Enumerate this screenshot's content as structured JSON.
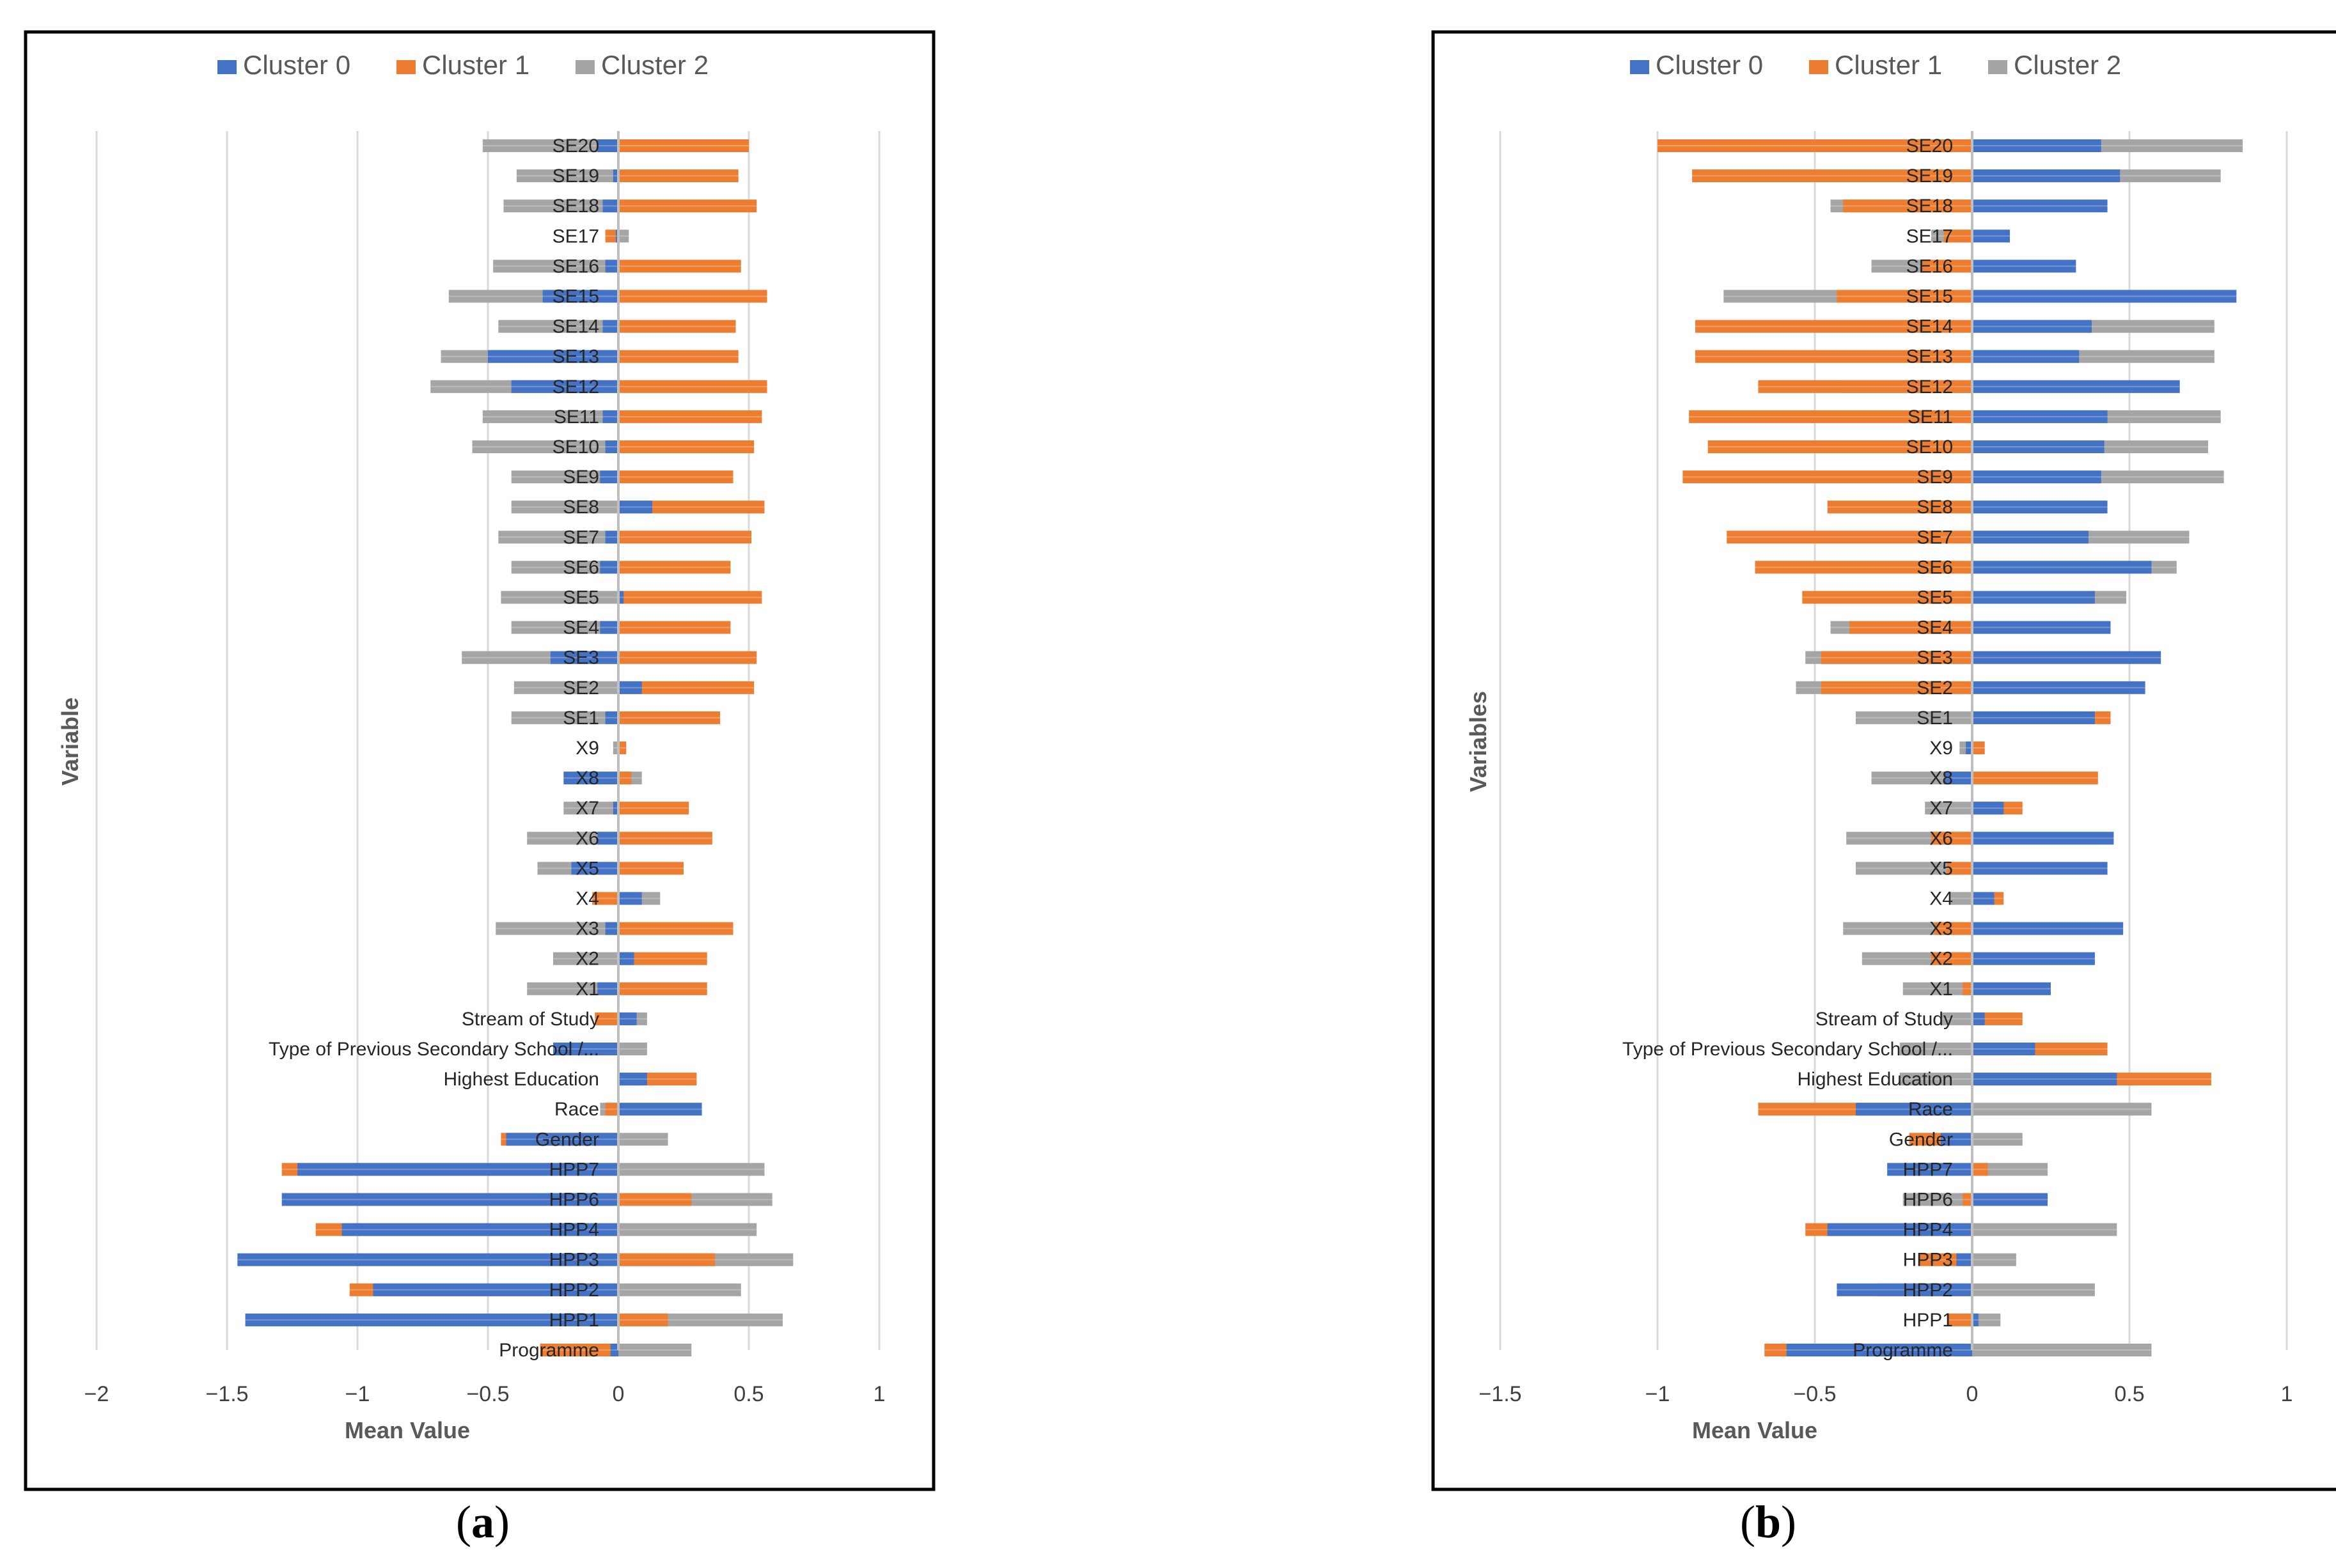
{
  "chart_data": [
    {
      "panel_label": "a",
      "type": "bar",
      "stacked": false,
      "title": "",
      "xlabel": "Mean Value",
      "ylabel": "Variable",
      "xlim": [
        -2,
        1.25
      ],
      "xticks": [
        -2,
        -1.5,
        -1,
        -0.5,
        0,
        0.5,
        1
      ],
      "xtick_labels": [
        "−2",
        "−1.5",
        "−1",
        "−0.5",
        "0",
        "0.5",
        "1"
      ],
      "legend_position": "top",
      "grid": true,
      "categories": [
        "SE20",
        "SE19",
        "SE18",
        "SE17",
        "SE16",
        "SE15",
        "SE14",
        "SE13",
        "SE12",
        "SE11",
        "SE10",
        "SE9",
        "SE8",
        "SE7",
        "SE6",
        "SE5",
        "SE4",
        "SE3",
        "SE2",
        "SE1",
        "X9",
        "X8",
        "X7",
        "X6",
        "X5",
        "X4",
        "X3",
        "X2",
        "X1",
        "Stream of Study",
        "Type of Previous Secondary School /...",
        "Highest Education",
        "Race",
        "Gender",
        "HPP7",
        "HPP6",
        "HPP4",
        "HPP3",
        "HPP2",
        "HPP1",
        "Programme"
      ],
      "series": [
        {
          "name": "Cluster 2",
          "color": "#a5a5a5",
          "values": [
            -0.52,
            -0.39,
            -0.44,
            0.04,
            -0.48,
            -0.65,
            -0.46,
            -0.68,
            -0.72,
            -0.52,
            -0.56,
            -0.41,
            -0.41,
            -0.46,
            -0.41,
            -0.45,
            -0.41,
            -0.6,
            -0.4,
            -0.41,
            -0.02,
            0.09,
            -0.21,
            -0.35,
            -0.31,
            0.16,
            -0.47,
            -0.25,
            -0.35,
            0.11,
            0.11,
            0.08,
            -0.07,
            0.19,
            0.56,
            0.59,
            0.53,
            0.67,
            0.47,
            0.63,
            0.28
          ]
        },
        {
          "name": "Cluster 1",
          "color": "#ed7d31",
          "values": [
            0.5,
            0.46,
            0.53,
            -0.05,
            0.47,
            0.57,
            0.45,
            0.46,
            0.57,
            0.55,
            0.52,
            0.44,
            0.56,
            0.51,
            0.43,
            0.55,
            0.43,
            0.53,
            0.52,
            0.39,
            0.03,
            0.05,
            0.27,
            0.36,
            0.25,
            -0.1,
            0.44,
            0.34,
            0.34,
            -0.09,
            -0.03,
            0.3,
            -0.05,
            -0.45,
            -1.29,
            0.28,
            -1.16,
            0.37,
            -1.03,
            0.19,
            -0.3
          ]
        },
        {
          "name": "Cluster 0",
          "color": "#4472c4",
          "values": [
            -0.08,
            -0.02,
            -0.06,
            -0.01,
            -0.05,
            -0.29,
            -0.06,
            -0.5,
            -0.41,
            -0.06,
            -0.05,
            -0.07,
            0.13,
            -0.05,
            -0.07,
            0.02,
            -0.07,
            -0.26,
            0.09,
            -0.05,
            0.0,
            -0.21,
            -0.02,
            -0.08,
            -0.18,
            0.09,
            -0.05,
            0.06,
            -0.08,
            0.07,
            -0.25,
            0.11,
            0.32,
            -0.43,
            -1.23,
            -1.29,
            -1.06,
            -1.46,
            -0.94,
            -1.43,
            -0.03
          ]
        }
      ]
    },
    {
      "panel_label": "b",
      "type": "bar",
      "stacked": false,
      "title": "",
      "xlabel": "Mean Value",
      "ylabel": "Variables",
      "xlim": [
        -1.65,
        1.12
      ],
      "xticks": [
        -1.5,
        -1,
        -0.5,
        0,
        0.5,
        1
      ],
      "xtick_labels": [
        "−1.5",
        "−1",
        "−0.5",
        "0",
        "0.5",
        "1"
      ],
      "legend_position": "top",
      "grid": true,
      "categories": [
        "SE20",
        "SE19",
        "SE18",
        "SE17",
        "SE16",
        "SE15",
        "SE14",
        "SE13",
        "SE12",
        "SE11",
        "SE10",
        "SE9",
        "SE8",
        "SE7",
        "SE6",
        "SE5",
        "SE4",
        "SE3",
        "SE2",
        "SE1",
        "X9",
        "X8",
        "X7",
        "X6",
        "X5",
        "X4",
        "X3",
        "X2",
        "X1",
        "Stream of Study",
        "Type of Previous Secondary School /...",
        "Highest Education",
        "Race",
        "Gender",
        "HPP7",
        "HPP6",
        "HPP4",
        "HPP3",
        "HPP2",
        "HPP1",
        "Programme"
      ],
      "series": [
        {
          "name": "Cluster 2",
          "color": "#a5a5a5",
          "values": [
            0.86,
            0.79,
            -0.45,
            -0.13,
            -0.32,
            -0.79,
            0.77,
            0.77,
            -0.42,
            0.79,
            0.75,
            0.8,
            0.42,
            0.69,
            0.65,
            0.49,
            -0.45,
            -0.53,
            -0.56,
            -0.37,
            -0.04,
            -0.32,
            -0.15,
            -0.4,
            -0.37,
            -0.07,
            -0.41,
            -0.35,
            -0.22,
            -0.1,
            -0.23,
            -0.23,
            0.57,
            0.16,
            0.24,
            -0.22,
            0.46,
            0.14,
            0.39,
            0.09,
            0.57
          ]
        },
        {
          "name": "Cluster 1",
          "color": "#ed7d31",
          "values": [
            -1.0,
            -0.89,
            -0.41,
            -0.09,
            -0.16,
            -0.43,
            -0.88,
            -0.88,
            -0.68,
            -0.9,
            -0.84,
            -0.92,
            -0.46,
            -0.78,
            -0.69,
            -0.54,
            -0.39,
            -0.48,
            -0.48,
            0.44,
            0.04,
            0.4,
            0.16,
            -0.13,
            -0.08,
            0.1,
            -0.12,
            -0.13,
            -0.03,
            0.16,
            0.43,
            0.76,
            -0.68,
            -0.2,
            0.05,
            -0.03,
            -0.53,
            -0.17,
            -0.3,
            -0.08,
            -0.66
          ]
        },
        {
          "name": "Cluster 0",
          "color": "#4472c4",
          "values": [
            0.41,
            0.47,
            0.43,
            0.12,
            0.33,
            0.84,
            0.38,
            0.34,
            0.66,
            0.43,
            0.42,
            0.41,
            0.43,
            0.37,
            0.57,
            0.39,
            0.44,
            0.6,
            0.55,
            0.39,
            -0.02,
            -0.09,
            0.1,
            0.45,
            0.43,
            0.07,
            0.48,
            0.39,
            0.25,
            0.04,
            0.2,
            0.46,
            -0.37,
            -0.1,
            -0.27,
            0.24,
            -0.46,
            -0.05,
            -0.43,
            0.02,
            -0.59
          ]
        }
      ]
    }
  ],
  "captions": {
    "a": "(a)",
    "b": "(b)"
  }
}
